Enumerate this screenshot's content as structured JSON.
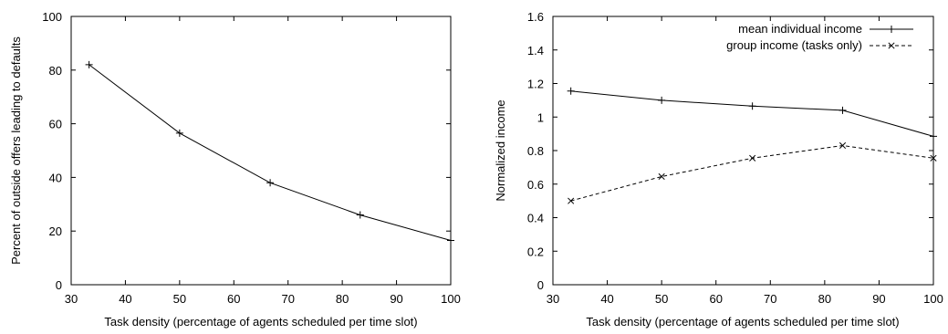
{
  "chart_data": [
    {
      "type": "line",
      "title": "",
      "xlabel": "Task density (percentage of agents scheduled per time slot)",
      "ylabel": "Percent of outside offers leading to defaults",
      "xlim": [
        30,
        100
      ],
      "ylim": [
        0,
        100
      ],
      "xticks": [
        30,
        40,
        50,
        60,
        70,
        80,
        90,
        100
      ],
      "yticks": [
        0,
        20,
        40,
        60,
        80,
        100
      ],
      "grid": false,
      "series": [
        {
          "x": [
            33.3,
            50,
            66.7,
            83.3,
            100
          ],
          "values": [
            82,
            56.5,
            38,
            26,
            16.5
          ],
          "marker": "plus",
          "dash": "solid",
          "color": "#000000"
        }
      ]
    },
    {
      "type": "line",
      "title": "",
      "xlabel": "Task density (percentage of agents scheduled per time slot)",
      "ylabel": "Normalized income",
      "xlim": [
        30,
        100
      ],
      "ylim": [
        0,
        1.6
      ],
      "xticks": [
        30,
        40,
        50,
        60,
        70,
        80,
        90,
        100
      ],
      "yticks": [
        0,
        0.2,
        0.4,
        0.6,
        0.8,
        1,
        1.2,
        1.4,
        1.6
      ],
      "grid": false,
      "legend_position": "top-right",
      "series": [
        {
          "name": "mean individual income",
          "x": [
            33.3,
            50,
            66.7,
            83.3,
            100
          ],
          "values": [
            1.155,
            1.1,
            1.065,
            1.04,
            0.885
          ],
          "marker": "plus",
          "dash": "solid",
          "color": "#000000"
        },
        {
          "name": "group income (tasks only)",
          "x": [
            33.3,
            50,
            66.7,
            83.3,
            100
          ],
          "values": [
            0.5,
            0.645,
            0.755,
            0.83,
            0.755
          ],
          "marker": "cross",
          "dash": "dashed",
          "color": "#000000"
        }
      ]
    }
  ]
}
